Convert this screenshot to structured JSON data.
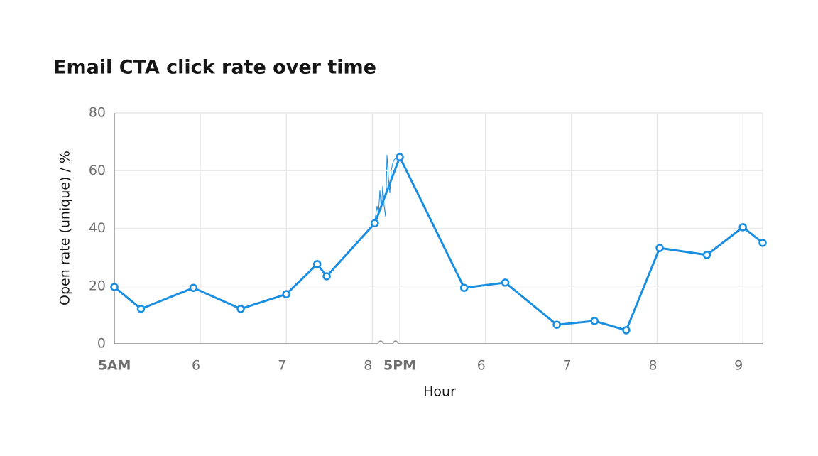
{
  "chart_data": {
    "type": "line",
    "title": "Email CTA click rate over time",
    "x_label": "Hour",
    "y_label": "Open rate (unique) / %",
    "x": [
      5,
      5.31,
      5.92,
      6.47,
      7,
      7.36,
      7.47,
      8.03,
      17,
      17.75,
      18.23,
      18.83,
      19.27,
      19.64,
      20.03,
      20.58,
      21,
      21.23
    ],
    "series": [
      {
        "name": "Open rate",
        "color": "#1a8ee0",
        "values": [
          19.7,
          12.1,
          19.4,
          12.1,
          17.2,
          27.6,
          23.4,
          41.8,
          64.7,
          19.4,
          21.2,
          6.6,
          7.9,
          4.7,
          33.2,
          30.8,
          40.4,
          35.0
        ]
      }
    ],
    "xlim": [
      5,
      21.23
    ],
    "xbreak": [
      8.13,
      16.95
    ],
    "xticks": [
      {
        "value": 5,
        "label": "5AM"
      },
      6,
      7,
      8,
      {
        "value": 17,
        "label": "5PM"
      },
      {
        "value": 18,
        "label": "6"
      },
      {
        "value": 19,
        "label": "7"
      },
      {
        "value": 20,
        "label": "8"
      },
      {
        "value": 21,
        "label": "9"
      }
    ],
    "ylim": [
      0,
      80
    ],
    "yticks": [
      0,
      20,
      40,
      60,
      80
    ],
    "grid": true
  }
}
